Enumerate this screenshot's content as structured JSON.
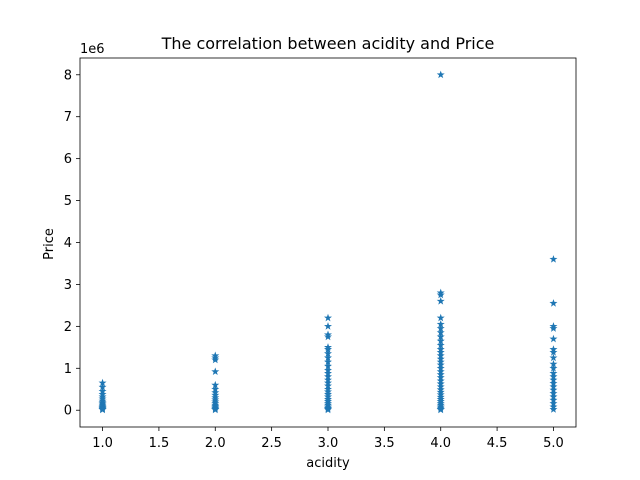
{
  "chart_data": {
    "type": "scatter",
    "title": "The correlation between acidity and Price",
    "xlabel": "acidity",
    "ylabel": "Price",
    "y_offset_label": "1e6",
    "xlim": [
      0.8,
      5.2
    ],
    "ylim": [
      -0.4,
      8.4
    ],
    "x_ticks": [
      "1.0",
      "1.5",
      "2.0",
      "2.5",
      "3.0",
      "3.5",
      "4.0",
      "4.5",
      "5.0"
    ],
    "y_ticks": [
      "0",
      "1",
      "2",
      "3",
      "4",
      "5",
      "6",
      "7",
      "8"
    ],
    "x_tick_values": [
      1.0,
      1.5,
      2.0,
      2.5,
      3.0,
      3.5,
      4.0,
      4.5,
      5.0
    ],
    "y_tick_values": [
      0,
      1,
      2,
      3,
      4,
      5,
      6,
      7,
      8
    ],
    "marker": "star",
    "grid": false,
    "color": "#1f77b4",
    "series": [
      {
        "x": [
          1.0,
          1.0,
          1.0,
          1.0,
          1.0,
          1.0,
          1.0,
          1.0,
          1.0,
          1.0,
          1.0,
          1.0,
          1.0,
          1.0,
          1.0,
          1.0,
          2.0,
          2.0,
          2.0,
          2.0,
          2.0,
          2.0,
          2.0,
          2.0,
          2.0,
          2.0,
          2.0,
          2.0,
          2.0,
          2.0,
          2.0,
          2.0,
          2.0,
          2.0,
          3.0,
          3.0,
          3.0,
          3.0,
          3.0,
          3.0,
          3.0,
          3.0,
          3.0,
          3.0,
          3.0,
          3.0,
          3.0,
          3.0,
          3.0,
          3.0,
          3.0,
          3.0,
          3.0,
          3.0,
          3.0,
          3.0,
          3.0,
          3.0,
          3.0,
          3.0,
          3.0,
          3.0,
          4.0,
          4.0,
          4.0,
          4.0,
          4.0,
          4.0,
          4.0,
          4.0,
          4.0,
          4.0,
          4.0,
          4.0,
          4.0,
          4.0,
          4.0,
          4.0,
          4.0,
          4.0,
          4.0,
          4.0,
          4.0,
          4.0,
          4.0,
          4.0,
          4.0,
          4.0,
          4.0,
          4.0,
          4.0,
          4.0,
          4.0,
          4.0,
          4.0,
          4.0,
          4.0,
          4.0,
          5.0,
          5.0,
          5.0,
          5.0,
          5.0,
          5.0,
          5.0,
          5.0,
          5.0,
          5.0,
          5.0,
          5.0,
          5.0,
          5.0,
          5.0,
          5.0,
          5.0,
          5.0,
          5.0,
          5.0,
          5.0,
          5.0
        ],
        "y": [
          0.65,
          0.55,
          0.45,
          0.38,
          0.32,
          0.27,
          0.22,
          0.18,
          0.15,
          0.12,
          0.09,
          0.07,
          0.05,
          0.03,
          0.02,
          0.01,
          1.3,
          1.25,
          1.2,
          0.92,
          0.6,
          0.5,
          0.42,
          0.36,
          0.3,
          0.25,
          0.2,
          0.16,
          0.12,
          0.09,
          0.06,
          0.04,
          0.02,
          0.01,
          2.2,
          2.0,
          1.8,
          1.75,
          1.5,
          1.45,
          1.35,
          1.25,
          1.15,
          1.05,
          0.95,
          0.88,
          0.8,
          0.72,
          0.65,
          0.58,
          0.5,
          0.44,
          0.38,
          0.32,
          0.26,
          0.21,
          0.16,
          0.12,
          0.08,
          0.05,
          0.03,
          0.01,
          8.0,
          2.8,
          2.75,
          2.6,
          2.2,
          2.05,
          1.95,
          1.85,
          1.75,
          1.65,
          1.55,
          1.45,
          1.38,
          1.3,
          1.22,
          1.15,
          1.08,
          1.0,
          0.92,
          0.85,
          0.78,
          0.7,
          0.63,
          0.56,
          0.49,
          0.43,
          0.37,
          0.31,
          0.26,
          0.21,
          0.16,
          0.12,
          0.08,
          0.05,
          0.02,
          0.01,
          3.6,
          2.55,
          2.0,
          1.95,
          1.7,
          1.45,
          1.38,
          1.25,
          1.1,
          1.0,
          0.88,
          0.8,
          0.72,
          0.64,
          0.56,
          0.48,
          0.4,
          0.32,
          0.24,
          0.16,
          0.08,
          0.02
        ]
      }
    ]
  }
}
